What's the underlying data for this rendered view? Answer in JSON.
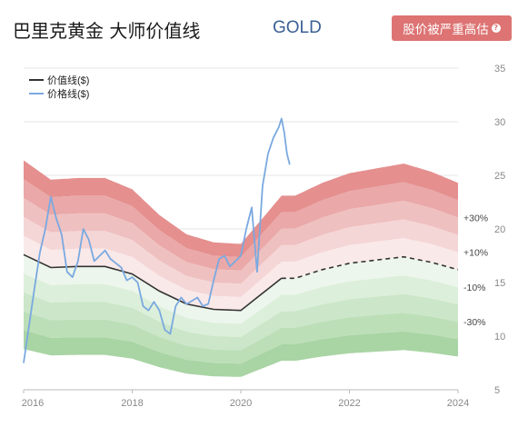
{
  "header": {
    "title": "巴里克黄金 大师价值线",
    "ticker": "GOLD",
    "verdict_label": "股价被严重高估",
    "verdict_icon": "question-circle-icon",
    "verdict_color": "#dd7373"
  },
  "chart_data": {
    "type": "line",
    "x_ticks": [
      "2016",
      "2018",
      "2020",
      "2022",
      "2024"
    ],
    "y_ticks": [
      5,
      10,
      15,
      20,
      25,
      30,
      35
    ],
    "ylim": [
      5,
      35
    ],
    "xlim": [
      2016.0,
      2024.0
    ],
    "y_axis_position": "right",
    "grid": true,
    "legend_position": "top-left",
    "band_labels": [
      "+30%",
      "+10%",
      "-10%",
      "-30%"
    ],
    "series": [
      {
        "name": "价值线($)",
        "color": "#333333",
        "style": "solid",
        "projection_style": "dashed",
        "projection_from": 2020.75,
        "points": [
          [
            2016.0,
            17.6
          ],
          [
            2016.5,
            16.4
          ],
          [
            2017.0,
            16.5
          ],
          [
            2017.5,
            16.5
          ],
          [
            2018.0,
            15.8
          ],
          [
            2018.5,
            14.2
          ],
          [
            2019.0,
            13.0
          ],
          [
            2019.5,
            12.5
          ],
          [
            2020.0,
            12.4
          ],
          [
            2020.3,
            13.6
          ],
          [
            2020.75,
            15.4
          ],
          [
            2021.0,
            15.4
          ],
          [
            2021.5,
            16.2
          ],
          [
            2022.0,
            16.8
          ],
          [
            2022.5,
            17.1
          ],
          [
            2023.0,
            17.4
          ],
          [
            2023.5,
            16.9
          ],
          [
            2024.0,
            16.2
          ]
        ]
      },
      {
        "name": "价格线($)",
        "color": "#7aa9e0",
        "style": "solid",
        "points": [
          [
            2016.0,
            7.5
          ],
          [
            2016.1,
            11.0
          ],
          [
            2016.2,
            14.5
          ],
          [
            2016.3,
            17.8
          ],
          [
            2016.4,
            20.0
          ],
          [
            2016.5,
            23.0
          ],
          [
            2016.6,
            21.0
          ],
          [
            2016.7,
            19.5
          ],
          [
            2016.8,
            16.0
          ],
          [
            2016.9,
            15.5
          ],
          [
            2017.0,
            17.0
          ],
          [
            2017.1,
            20.0
          ],
          [
            2017.2,
            19.0
          ],
          [
            2017.3,
            17.0
          ],
          [
            2017.4,
            17.5
          ],
          [
            2017.5,
            18.0
          ],
          [
            2017.6,
            17.2
          ],
          [
            2017.7,
            16.8
          ],
          [
            2017.8,
            16.4
          ],
          [
            2017.9,
            15.2
          ],
          [
            2018.0,
            15.5
          ],
          [
            2018.1,
            15.0
          ],
          [
            2018.2,
            12.8
          ],
          [
            2018.3,
            12.4
          ],
          [
            2018.4,
            13.2
          ],
          [
            2018.5,
            12.4
          ],
          [
            2018.6,
            10.6
          ],
          [
            2018.7,
            10.2
          ],
          [
            2018.8,
            12.8
          ],
          [
            2018.9,
            13.6
          ],
          [
            2019.0,
            13.0
          ],
          [
            2019.1,
            13.3
          ],
          [
            2019.2,
            13.6
          ],
          [
            2019.3,
            12.8
          ],
          [
            2019.4,
            13.0
          ],
          [
            2019.5,
            15.2
          ],
          [
            2019.6,
            17.2
          ],
          [
            2019.7,
            17.5
          ],
          [
            2019.8,
            16.5
          ],
          [
            2019.9,
            17.0
          ],
          [
            2020.0,
            17.5
          ],
          [
            2020.1,
            20.0
          ],
          [
            2020.2,
            22.0
          ],
          [
            2020.3,
            16.0
          ],
          [
            2020.4,
            24.0
          ],
          [
            2020.5,
            27.0
          ],
          [
            2020.6,
            28.5
          ],
          [
            2020.7,
            29.5
          ],
          [
            2020.75,
            30.3
          ],
          [
            2020.8,
            29.0
          ],
          [
            2020.85,
            27.0
          ],
          [
            2020.9,
            26.0
          ]
        ]
      }
    ],
    "bands": [
      {
        "from_pct": 40,
        "to_pct": 50,
        "color": "#e58f8f"
      },
      {
        "from_pct": 30,
        "to_pct": 40,
        "color": "#eaa8a8"
      },
      {
        "from_pct": 20,
        "to_pct": 30,
        "color": "#efc0c0"
      },
      {
        "from_pct": 10,
        "to_pct": 20,
        "color": "#f5d6d6"
      },
      {
        "from_pct": 0,
        "to_pct": 10,
        "color": "#fae9e9"
      },
      {
        "from_pct": -10,
        "to_pct": 0,
        "color": "#edf6ec"
      },
      {
        "from_pct": -20,
        "to_pct": -10,
        "color": "#dcefda"
      },
      {
        "from_pct": -30,
        "to_pct": -20,
        "color": "#cbe6c8"
      },
      {
        "from_pct": -40,
        "to_pct": -30,
        "color": "#bcdfb8"
      },
      {
        "from_pct": -50,
        "to_pct": -40,
        "color": "#a9d4a4"
      }
    ]
  }
}
